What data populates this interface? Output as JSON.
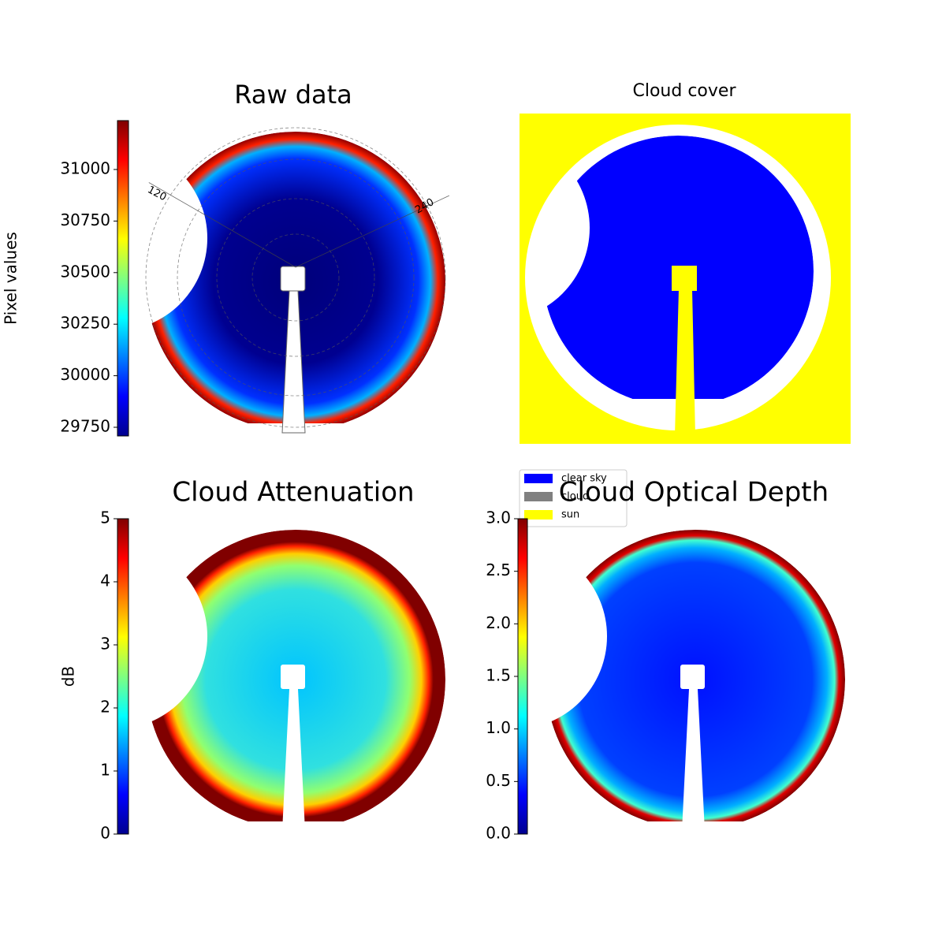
{
  "chart_data": [
    {
      "type": "image",
      "title": "Raw data",
      "colormap": "jet",
      "colorbar": {
        "label": "Pixel values",
        "lim": [
          29708,
          31237
        ],
        "ticks": [
          29750,
          30000,
          30250,
          30500,
          30750,
          31000
        ]
      },
      "annotations": [
        "120",
        "240"
      ]
    },
    {
      "type": "image",
      "title": "Cloud cover",
      "legend": [
        {
          "name": "clear sky",
          "color": "#0000ff"
        },
        {
          "name": "cloud",
          "color": "#808080"
        },
        {
          "name": "sun",
          "color": "#ffff00"
        }
      ]
    },
    {
      "type": "image",
      "title": "Cloud Attenuation",
      "colormap": "jet",
      "colorbar": {
        "label": "dB",
        "lim": [
          0,
          5
        ],
        "ticks": [
          0,
          1,
          2,
          3,
          4,
          5
        ]
      }
    },
    {
      "type": "image",
      "title": "Cloud Optical Depth",
      "colormap": "jet",
      "colorbar": {
        "lim": [
          0,
          3
        ],
        "ticks": [
          {
            "value": 0,
            "label": "0.0"
          },
          0.5,
          {
            "value": 1,
            "label": "1.0"
          },
          1.5,
          {
            "value": 2,
            "label": "2.0"
          },
          2.5,
          {
            "value": 3,
            "label": "3.0"
          }
        ]
      }
    }
  ]
}
